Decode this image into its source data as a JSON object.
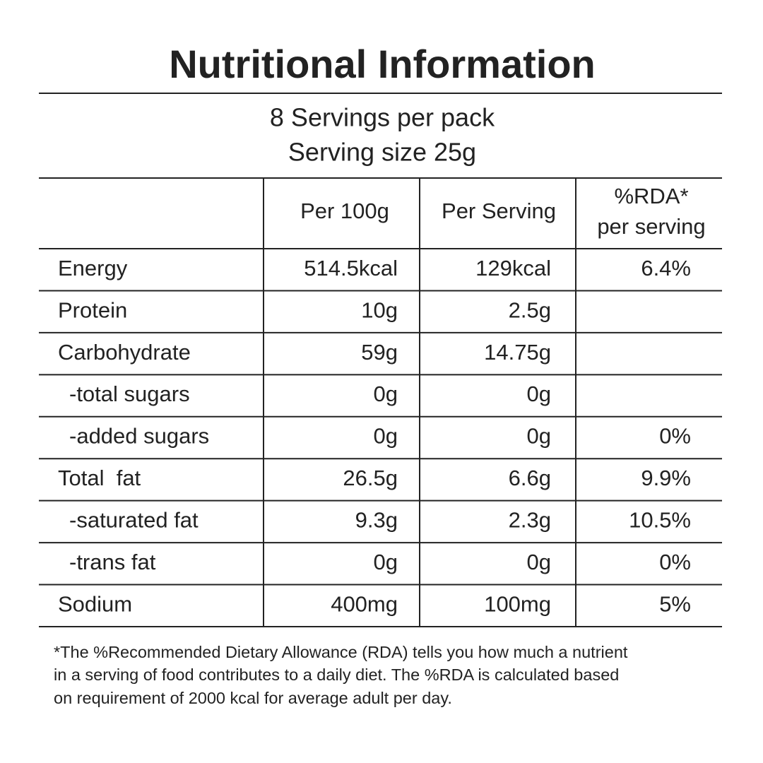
{
  "title": "Nutritional Information",
  "servings": [
    "8 Servings per pack",
    "Serving size 25g"
  ],
  "table": {
    "header": {
      "per_100g": "Per 100g",
      "per_serving": "Per Serving",
      "rda": [
        "%RDA*",
        "per serving"
      ]
    },
    "rows": [
      [
        "Energy",
        "514.5kcal",
        "129kcal",
        "6.4%"
      ],
      [
        "Protein",
        "10g",
        "2.5g"
      ],
      [
        "Carbohydrate",
        "59g",
        "14.75g"
      ],
      [
        "-total sugars",
        "0g",
        "0g"
      ],
      [
        "-added sugars",
        "0g",
        "0g",
        "0%"
      ],
      [
        "Total  fat",
        "26.5g",
        "6.6g",
        "9.9%"
      ],
      [
        "-saturated fat",
        "9.3g",
        "2.3g",
        "10.5%"
      ],
      [
        "-trans fat",
        "0g",
        "0g",
        "0%"
      ],
      [
        "Sodium",
        "400mg",
        "100mg",
        "5%"
      ]
    ]
  },
  "footnote": [
    "*The %Recommended Dietary Allowance (RDA) tells you how much a nutrient",
    "in a serving of food contributes to a daily diet. The %RDA is calculated based",
    "on requirement of 2000 kcal for average adult per day."
  ]
}
